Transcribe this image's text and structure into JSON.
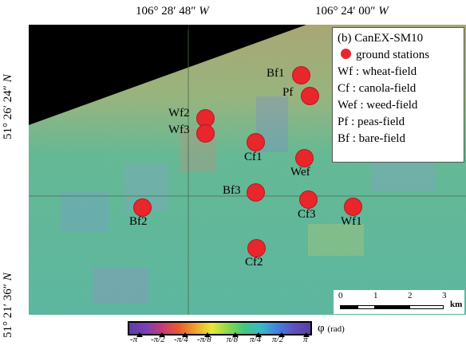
{
  "coords": {
    "top_left": "106° 28′ 48″",
    "top_left_dir": "W",
    "top_right": "106° 24′ 00″",
    "top_right_dir": "W",
    "left_top": "51° 26′ 24″",
    "left_top_dir": "N",
    "left_bottom": "51° 21′ 36″",
    "left_bottom_dir": "N"
  },
  "legend": {
    "title": "(b) CanEX-SM10",
    "marker_label": "ground stations",
    "entries": [
      "Wf : wheat-field",
      "Cf : canola-field",
      "Wef : weed-field",
      "Pf : peas-field",
      "Bf : bare-field"
    ],
    "marker_color": "#e8262b"
  },
  "stations": [
    {
      "label": "Bf1"
    },
    {
      "label": "Pf"
    },
    {
      "label": "Wf2"
    },
    {
      "label": "Wf3"
    },
    {
      "label": "Cf1"
    },
    {
      "label": "Wef"
    },
    {
      "label": "Bf3"
    },
    {
      "label": "Cf3"
    },
    {
      "label": "Wf1"
    },
    {
      "label": "Bf2"
    },
    {
      "label": "Cf2"
    }
  ],
  "scalebar": {
    "ticks": [
      "0",
      "1",
      "2",
      "3"
    ],
    "unit": "km"
  },
  "colorbar": {
    "ticks": [
      "-π",
      "-π/2",
      "-π/4",
      "-π/8",
      "π/8",
      "π/4",
      "π/2",
      "π"
    ],
    "quantity": "φ",
    "unit": "(rad)"
  }
}
